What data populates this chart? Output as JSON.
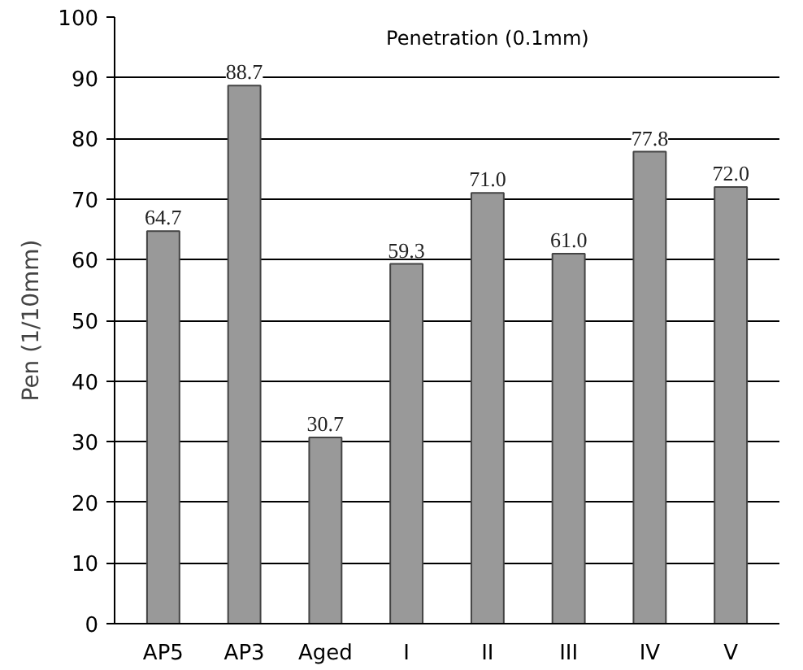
{
  "chart_data": {
    "type": "bar",
    "title": "Penetration (0.1mm)",
    "ylabel": "Pen (1/10mm)",
    "categories": [
      "AP5",
      "AP3",
      "Aged",
      "I",
      "II",
      "III",
      "IV",
      "V"
    ],
    "values": [
      64.7,
      88.7,
      30.7,
      59.3,
      71.0,
      61.0,
      77.8,
      72.0
    ],
    "value_labels": [
      "64.7",
      "88.7",
      "30.7",
      "59.3",
      "71.0",
      "61.0",
      "77.8",
      "72.0"
    ],
    "color": "#999999",
    "ylim": [
      0,
      100
    ],
    "yticks": [
      0,
      10,
      20,
      30,
      40,
      50,
      60,
      70,
      80,
      90,
      100
    ],
    "grid": "y"
  }
}
